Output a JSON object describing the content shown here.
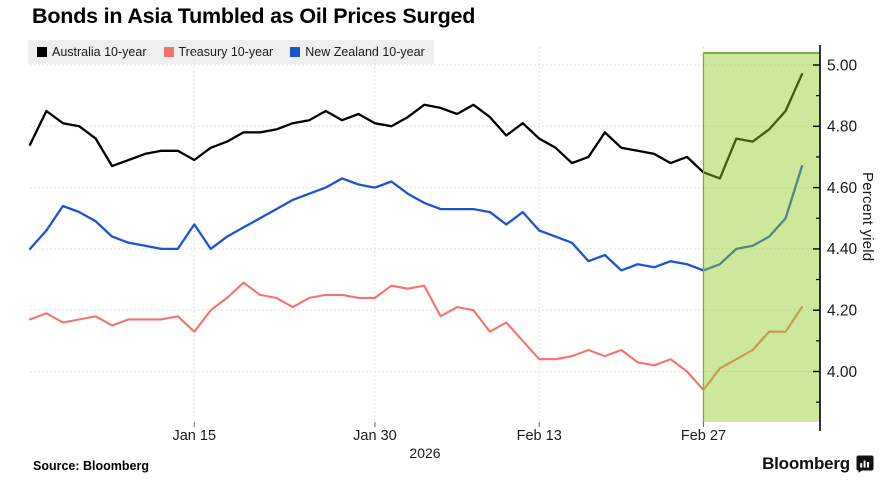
{
  "title": "Bonds in Asia Tumbled as Oil Prices Surged",
  "legend": {
    "items": [
      {
        "label": "Australia 10-year",
        "color": "#000000"
      },
      {
        "label": "Treasury 10-year",
        "color": "#f4736e"
      },
      {
        "label": "New Zealand 10-year",
        "color": "#1d53d0"
      }
    ]
  },
  "chart_data": {
    "type": "line",
    "title": "Bonds in Asia Tumbled as Oil Prices Surged",
    "ylabel": "Percent yield",
    "ylim": [
      3.84,
      5.04
    ],
    "yticks": [
      5.0,
      4.8,
      4.6,
      4.4,
      4.2,
      4.0
    ],
    "ytick_labels": [
      "5.00",
      "4.80",
      "4.60",
      "4.40",
      "4.20",
      "4.00"
    ],
    "minor_yticks": [
      4.9,
      4.7,
      4.5,
      4.3,
      4.1,
      3.9
    ],
    "num_points": 48,
    "x_tick_labels": [
      "Jan 15",
      "Jan 30",
      "Feb 13",
      "Feb 27"
    ],
    "x_tick_indices": [
      10,
      21,
      31,
      41
    ],
    "year_label": "2026",
    "grid": true,
    "grid_color": "#d9d9d9",
    "axis_color": "#000000",
    "legend_position": "top-left",
    "highlight_region": {
      "start_index": 41,
      "fill": "rgba(144,202,38,0.45)",
      "border_color": "#7db23a"
    },
    "series": [
      {
        "name": "Australia 10-year",
        "color": "#000000",
        "stroke_width": 2.3,
        "values": [
          4.74,
          4.85,
          4.81,
          4.8,
          4.76,
          4.67,
          4.69,
          4.71,
          4.72,
          4.72,
          4.69,
          4.73,
          4.75,
          4.78,
          4.78,
          4.79,
          4.81,
          4.82,
          4.85,
          4.82,
          4.84,
          4.81,
          4.8,
          4.83,
          4.87,
          4.86,
          4.84,
          4.87,
          4.83,
          4.77,
          4.81,
          4.76,
          4.73,
          4.68,
          4.7,
          4.78,
          4.73,
          4.72,
          4.71,
          4.68,
          4.7,
          4.65,
          4.63,
          4.76,
          4.75,
          4.79,
          4.85,
          4.97
        ]
      },
      {
        "name": "Treasury 10-year",
        "color": "#f4736e",
        "stroke_width": 2.1,
        "values": [
          4.17,
          4.19,
          4.16,
          4.17,
          4.18,
          4.15,
          4.17,
          4.17,
          4.17,
          4.18,
          4.13,
          4.2,
          4.24,
          4.29,
          4.25,
          4.24,
          4.21,
          4.24,
          4.25,
          4.25,
          4.24,
          4.24,
          4.28,
          4.27,
          4.28,
          4.18,
          4.21,
          4.2,
          4.13,
          4.16,
          4.1,
          4.04,
          4.04,
          4.05,
          4.07,
          4.05,
          4.07,
          4.03,
          4.02,
          4.04,
          4.0,
          3.94,
          4.01,
          4.04,
          4.07,
          4.13,
          4.13,
          4.21
        ]
      },
      {
        "name": "New Zealand 10-year",
        "color": "#1d53d0",
        "stroke_width": 2.3,
        "values": [
          4.4,
          4.46,
          4.54,
          4.52,
          4.49,
          4.44,
          4.42,
          4.41,
          4.4,
          4.4,
          4.48,
          4.4,
          4.44,
          4.47,
          4.5,
          4.53,
          4.56,
          4.58,
          4.6,
          4.63,
          4.61,
          4.6,
          4.62,
          4.58,
          4.55,
          4.53,
          4.53,
          4.53,
          4.52,
          4.48,
          4.52,
          4.46,
          4.44,
          4.42,
          4.36,
          4.38,
          4.33,
          4.35,
          4.34,
          4.36,
          4.35,
          4.33,
          4.35,
          4.4,
          4.41,
          4.44,
          4.5,
          4.67
        ]
      }
    ]
  },
  "source": "Source: Bloomberg",
  "branding": {
    "logo_text": "Bloomberg",
    "logo_icon": "bloomberg-terminal-icon"
  }
}
